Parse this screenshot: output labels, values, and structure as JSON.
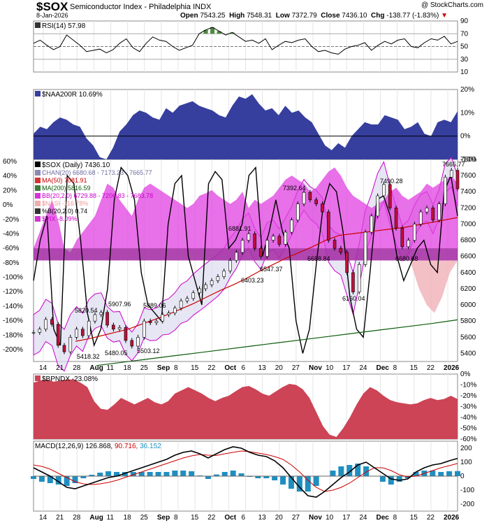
{
  "header": {
    "symbol": "$SOX",
    "name": "Semiconductor Index - Philadelphia",
    "exchange": "INDX",
    "date": "8-Jan-2026",
    "open_label": "Open",
    "open": "7543.25",
    "high_label": "High",
    "high": "7548.31",
    "low_label": "Low",
    "low": "7372.79",
    "close_label": "Close",
    "close": "7436.10",
    "chg_label": "Chg",
    "chg": "-138.77 (-1.83%)",
    "watermark": "@ StockCharts.com"
  },
  "chart_data": [
    {
      "type": "line",
      "panel": "rsi",
      "title": "RSI(14) 57.98",
      "ylim": [
        10,
        90
      ],
      "ticks": [
        "90",
        "70",
        "50",
        "30",
        "10"
      ],
      "series": [
        {
          "name": "RSI(14)",
          "values": [
            55,
            60,
            52,
            45,
            50,
            68,
            60,
            52,
            42,
            44,
            46,
            40,
            45,
            55,
            62,
            48,
            42,
            55,
            65,
            60,
            58,
            50,
            44,
            48,
            52,
            70,
            76,
            80,
            74,
            68,
            72,
            65,
            58,
            60,
            55,
            62,
            45,
            52,
            58,
            56,
            60,
            62,
            50,
            42,
            44,
            40,
            38,
            46,
            50,
            52,
            56,
            44,
            52,
            58,
            54,
            60,
            62,
            50,
            48,
            56,
            62,
            60,
            66,
            54,
            58
          ]
        }
      ],
      "colors": {
        "line": "#000000",
        "overbought_fill": "#4c8a3f"
      }
    },
    {
      "type": "area",
      "panel": "naa200r",
      "title": "$NAA200R 10.69%",
      "ylim": [
        -10,
        20
      ],
      "ticks": [
        "20%",
        "10%",
        "0%",
        "-10%"
      ],
      "series": [
        {
          "name": "$NAA200R",
          "values": [
            1,
            4,
            3,
            6,
            8,
            7,
            5,
            4,
            -1,
            -4,
            -9,
            -10,
            -5,
            2,
            5,
            9,
            11,
            10,
            8,
            7,
            12,
            10,
            13,
            14,
            15,
            13,
            12,
            11,
            9,
            8,
            13,
            17,
            16,
            18,
            14,
            11,
            12,
            9,
            13,
            10,
            11,
            8,
            6,
            1,
            -4,
            -6,
            -3,
            -5,
            0,
            3,
            6,
            5,
            5,
            9,
            8,
            7,
            3,
            4,
            6,
            1,
            0,
            6,
            7,
            6,
            10.7
          ]
        }
      ],
      "colors": {
        "fill": "#363f9e"
      }
    },
    {
      "type": "line",
      "panel": "price",
      "title": "$SOX (Daily) 7436.10",
      "ylim": [
        5300,
        7800
      ],
      "right_ticks": [
        "7800",
        "7600",
        "7400",
        "7200",
        "7000",
        "6800",
        "6600",
        "6400",
        "6200",
        "6000",
        "5800",
        "5600",
        "5400"
      ],
      "left_ticks": [
        "60%",
        "40%",
        "20%",
        "0%",
        "-20%",
        "-40%",
        "-60%",
        "-80%",
        "-100%",
        "-120%",
        "-140%",
        "-160%",
        "-180%",
        "-200%"
      ],
      "legend": [
        {
          "text": "CHAN(20) 6680.68 - 7173.23 - 7665.77",
          "color": "#6b6b9e"
        },
        {
          "text": "MA(50) 7081.91",
          "color": "#cc0000"
        },
        {
          "text": "MA(200) 5816.59",
          "color": "#0a5a0a"
        },
        {
          "text": "BB(20,2.0) 6729.88 - 7206.83 - 7683.78",
          "color": "#cc00cc"
        },
        {
          "text": "$NASI -116.78%",
          "color": "#ee9999"
        },
        {
          "text": "%B(20,2.0) 0.74",
          "color": "#000000"
        },
        {
          "text": "$VIX -8.09%",
          "color": "#cc00cc"
        }
      ],
      "annotations": [
        "7665.77",
        "7490.28",
        "7392.64",
        "6881.91",
        "6688.84",
        "6680.68",
        "6547.37",
        "6403.23",
        "6160.04",
        "5907.96",
        "5889.06",
        "5820.54",
        "5503.12",
        "5480.05",
        "5418.32"
      ],
      "series": [
        {
          "name": "$SOX",
          "values": [
            5660,
            5700,
            5820,
            5760,
            5500,
            5420,
            5600,
            5700,
            5620,
            5800,
            5880,
            5907,
            5750,
            5700,
            5720,
            5560,
            5490,
            5600,
            5800,
            5780,
            5800,
            5880,
            5900,
            5960,
            6050,
            6080,
            6150,
            6200,
            6250,
            6300,
            6350,
            6420,
            6550,
            6650,
            6800,
            6880,
            6700,
            6600,
            6800,
            6850,
            6750,
            6900,
            7050,
            7250,
            7392,
            7300,
            7250,
            7150,
            6800,
            6700,
            6650,
            6400,
            6160,
            6500,
            6900,
            7100,
            7350,
            7490,
            7200,
            6950,
            6720,
            6800,
            7000,
            7150,
            7200,
            7050,
            7250,
            7580,
            7665,
            7436
          ]
        },
        {
          "name": "MA(50)",
          "values": [
            5550,
            5580,
            5620,
            5660,
            5700,
            5760,
            5820,
            5880,
            5950,
            6020,
            6100,
            6180,
            6250,
            6330,
            6420,
            6500,
            6580,
            6650,
            6720,
            6800,
            6860,
            6880,
            6900,
            6920,
            6940,
            6960,
            6990,
            7020,
            7050,
            7082
          ]
        },
        {
          "name": "MA(200)",
          "values": [
            5250,
            5290,
            5330,
            5370,
            5410,
            5450,
            5490,
            5530,
            5570,
            5610,
            5650,
            5690,
            5730,
            5770,
            5816
          ]
        }
      ]
    },
    {
      "type": "area",
      "panel": "bpndx",
      "title": "$BPNDX -23.08%",
      "ylim": [
        -60,
        0
      ],
      "ticks": [
        "0%",
        "-10%",
        "-20%",
        "-30%",
        "-40%",
        "-50%",
        "-60%"
      ],
      "series": [
        {
          "name": "$BPNDX",
          "values": [
            -8,
            -6,
            -5,
            -7,
            -6,
            -5,
            -5,
            -8,
            -12,
            -25,
            -32,
            -33,
            -28,
            -22,
            -25,
            -28,
            -25,
            -22,
            -26,
            -28,
            -25,
            -18,
            -15,
            -12,
            -15,
            -18,
            -22,
            -25,
            -22,
            -20,
            -16,
            -12,
            -11,
            -14,
            -18,
            -20,
            -16,
            -12,
            -9,
            -10,
            -14,
            -22,
            -35,
            -48,
            -56,
            -58,
            -50,
            -40,
            -28,
            -18,
            -12,
            -15,
            -20,
            -24,
            -26,
            -27,
            -28,
            -27,
            -24,
            -22,
            -24,
            -23,
            -20,
            -23.08
          ]
        }
      ],
      "colors": {
        "fill": "#cc4455"
      }
    },
    {
      "type": "line",
      "panel": "macd",
      "title": "MACD(12,26,9)",
      "values_label": {
        "macd": "126.868",
        "signal": "90.716",
        "hist": "36.152"
      },
      "ylim": [
        -250,
        250
      ],
      "ticks": [
        "200",
        "100",
        "0",
        "-100",
        "-200"
      ],
      "series": [
        {
          "name": "MACD",
          "values": [
            60,
            30,
            0,
            -40,
            -80,
            -90,
            -70,
            -50,
            -30,
            -10,
            0,
            20,
            40,
            60,
            80,
            100,
            120,
            150,
            170,
            180,
            160,
            130,
            160,
            190,
            210,
            200,
            170,
            150,
            140,
            110,
            60,
            -10,
            -80,
            -140,
            -150,
            -110,
            -60,
            -10,
            30,
            80,
            100,
            60,
            20,
            -20,
            -30,
            -20,
            30,
            60,
            80,
            90,
            110,
            127
          ]
        },
        {
          "name": "Signal",
          "values": [
            80,
            70,
            50,
            20,
            -10,
            -40,
            -55,
            -60,
            -55,
            -45,
            -30,
            -10,
            10,
            30,
            50,
            70,
            90,
            110,
            130,
            145,
            155,
            150,
            148,
            160,
            170,
            180,
            175,
            165,
            155,
            140,
            120,
            80,
            30,
            -30,
            -80,
            -110,
            -100,
            -80,
            -50,
            -10,
            30,
            60,
            60,
            40,
            10,
            -5,
            0,
            20,
            40,
            60,
            75,
            90.7
          ]
        }
      ],
      "colors": {
        "macd": "#000000",
        "signal": "#cc0000",
        "hist": "#1f8fc0"
      }
    }
  ],
  "x_axis": {
    "labels": [
      "14",
      "21",
      "28",
      "Aug",
      "11",
      "18",
      "25",
      "Sep",
      "8",
      "15",
      "22",
      "Oct",
      "6",
      "13",
      "20",
      "27",
      "Nov",
      "10",
      "17",
      "24",
      "Dec",
      "8",
      "15",
      "22",
      "2026"
    ],
    "bold": [
      "Aug",
      "Sep",
      "Oct",
      "Nov",
      "Dec",
      "2026"
    ]
  }
}
